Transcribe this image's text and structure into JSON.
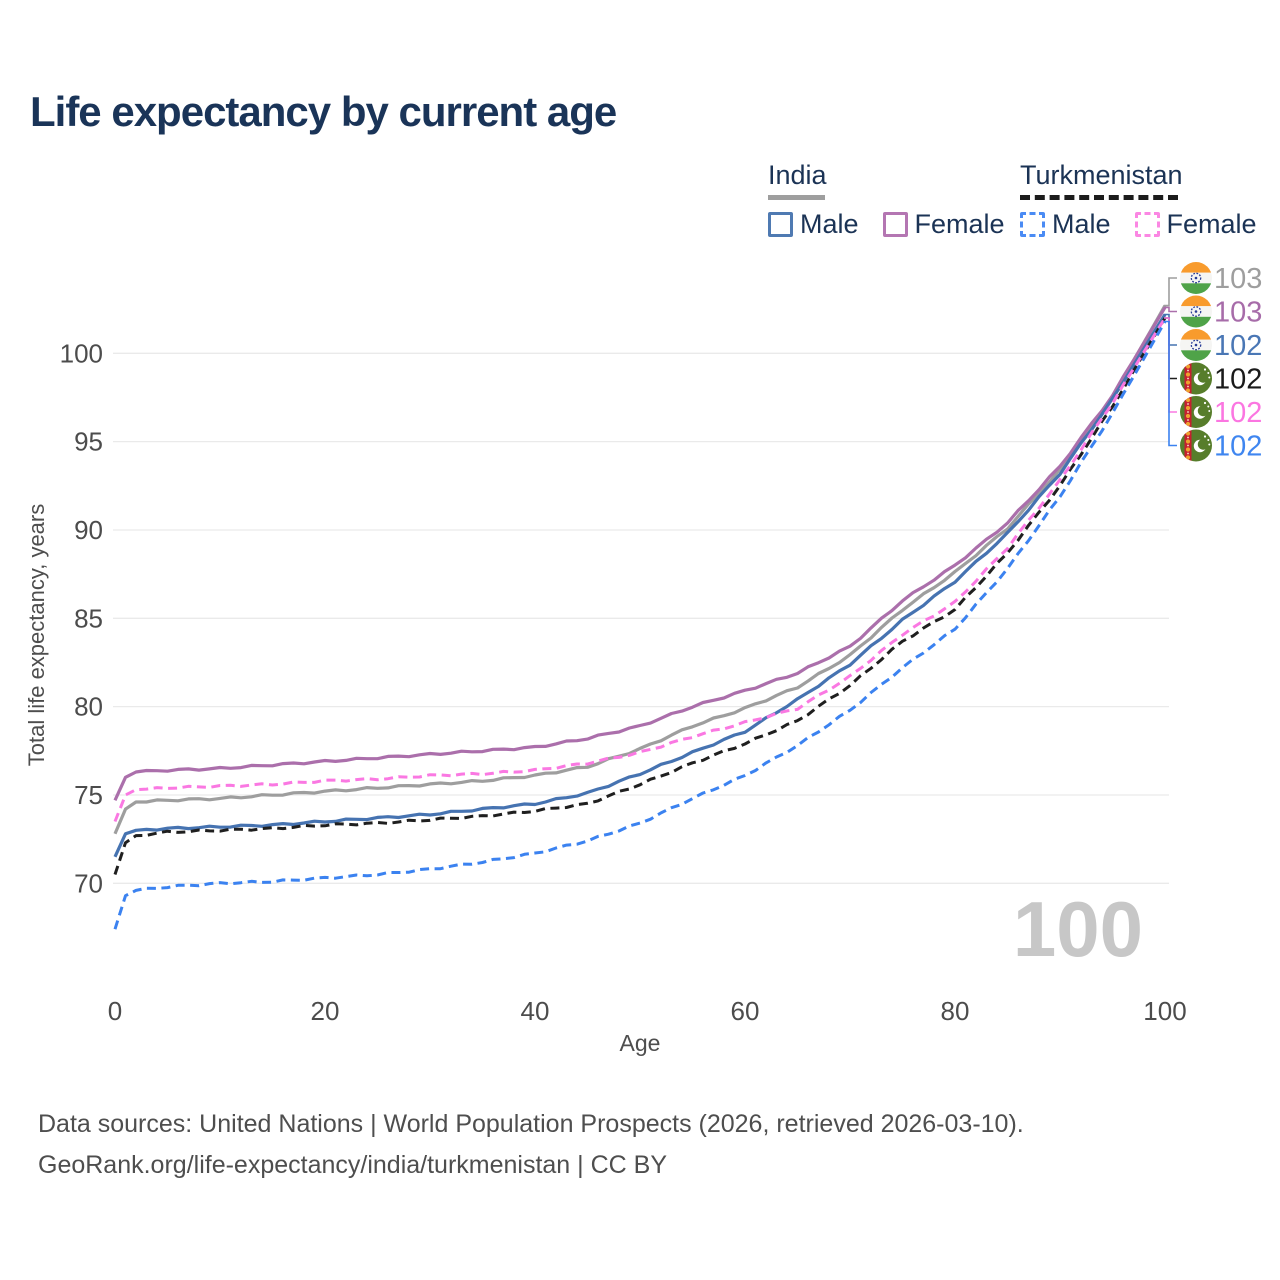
{
  "title": "Life expectancy by current age",
  "legend": {
    "groups": [
      {
        "label": "India",
        "line_style": "solid",
        "line_color": "#9e9e9e",
        "items": [
          {
            "label": "Male",
            "color": "#4f7ab2",
            "dashed": false
          },
          {
            "label": "Female",
            "color": "#b476b2",
            "dashed": false
          }
        ]
      },
      {
        "label": "Turkmenistan",
        "line_style": "dashed",
        "line_color": "#1c1c1c",
        "items": [
          {
            "label": "Male",
            "color": "#4a8bf4",
            "dashed": true
          },
          {
            "label": "Female",
            "color": "#fb87e3",
            "dashed": true
          }
        ]
      }
    ]
  },
  "chart_data": {
    "type": "line",
    "title": "Life expectancy by current age",
    "xlabel": "Age",
    "ylabel": "Total life expectancy, years",
    "x_ticks": [
      0,
      20,
      40,
      60,
      80,
      100
    ],
    "y_ticks": [
      70,
      75,
      80,
      85,
      90,
      95,
      100
    ],
    "xlim": [
      0,
      100
    ],
    "ylim": [
      66.5,
      103.5
    ],
    "grid": true,
    "legend_position": "top-right",
    "x": [
      0,
      1,
      2,
      5,
      10,
      15,
      20,
      25,
      30,
      35,
      40,
      45,
      50,
      55,
      60,
      65,
      70,
      75,
      80,
      85,
      90,
      95,
      100
    ],
    "series": [
      {
        "id": "india-all",
        "name": "India",
        "country": "India",
        "sex": "All",
        "color": "#9e9e9e",
        "dashed": false,
        "flag": "india",
        "end_label": "103",
        "label_color": "#9e9e9e",
        "values": [
          72.8,
          74.2,
          74.6,
          74.7,
          74.8,
          75.0,
          75.2,
          75.4,
          75.6,
          75.8,
          76.1,
          76.6,
          77.6,
          78.9,
          79.9,
          81.1,
          82.9,
          85.5,
          87.6,
          90.1,
          93.4,
          97.5,
          102.7
        ]
      },
      {
        "id": "india-female",
        "name": "India Female",
        "country": "India",
        "sex": "Female",
        "color": "#ab6fab",
        "dashed": false,
        "flag": "india",
        "end_label": "103",
        "label_color": "#a76ca9",
        "values": [
          74.7,
          76.0,
          76.3,
          76.4,
          76.5,
          76.7,
          76.9,
          77.1,
          77.3,
          77.5,
          77.7,
          78.2,
          78.9,
          80.0,
          80.9,
          81.9,
          83.4,
          86.0,
          88.0,
          90.4,
          93.6,
          97.6,
          102.6
        ]
      },
      {
        "id": "india-male",
        "name": "India Male",
        "country": "India",
        "sex": "Male",
        "color": "#4673b1",
        "dashed": false,
        "flag": "india",
        "end_label": "102",
        "label_color": "#4a77b5",
        "values": [
          71.5,
          72.8,
          73.0,
          73.1,
          73.2,
          73.3,
          73.5,
          73.7,
          73.9,
          74.2,
          74.5,
          75.1,
          76.2,
          77.4,
          78.6,
          80.4,
          82.4,
          84.9,
          87.1,
          89.8,
          93.2,
          97.4,
          102.2
        ]
      },
      {
        "id": "turkmenistan-all",
        "name": "Turkmenistan",
        "country": "Turkmenistan",
        "sex": "All",
        "color": "#1f1f1f",
        "dashed": true,
        "flag": "turkmenistan",
        "end_label": "102",
        "label_color": "#1a1a1a",
        "values": [
          70.5,
          72.3,
          72.7,
          72.9,
          73.0,
          73.1,
          73.3,
          73.4,
          73.6,
          73.8,
          74.1,
          74.5,
          75.6,
          76.8,
          77.9,
          79.2,
          81.2,
          83.7,
          85.5,
          88.7,
          92.5,
          97.0,
          102.0
        ]
      },
      {
        "id": "turkmenistan-female",
        "name": "Turkmenistan Female",
        "country": "Turkmenistan",
        "sex": "Female",
        "color": "#fa78e2",
        "dashed": true,
        "flag": "turkmenistan",
        "end_label": "102",
        "label_color": "#fb76e1",
        "values": [
          73.5,
          75.0,
          75.3,
          75.4,
          75.5,
          75.6,
          75.8,
          75.9,
          76.1,
          76.2,
          76.4,
          76.8,
          77.4,
          78.3,
          79.1,
          79.9,
          81.7,
          84.1,
          85.9,
          89.0,
          92.8,
          97.2,
          102.0
        ]
      },
      {
        "id": "turkmenistan-male",
        "name": "Turkmenistan Male",
        "country": "Turkmenistan",
        "sex": "Male",
        "color": "#3b82f0",
        "dashed": true,
        "flag": "turkmenistan",
        "end_label": "102",
        "label_color": "#3f86f0",
        "values": [
          67.4,
          69.3,
          69.6,
          69.8,
          70.0,
          70.1,
          70.3,
          70.5,
          70.8,
          71.2,
          71.7,
          72.4,
          73.4,
          74.8,
          76.1,
          77.8,
          79.8,
          82.2,
          84.4,
          87.8,
          91.9,
          96.6,
          101.8
        ]
      }
    ]
  },
  "watermark": "100",
  "footer": {
    "line1": "Data sources: United Nations | World Population Prospects (2026, retrieved 2026-03-10).",
    "line2": "GeoRank.org/life-expectancy/india/turkmenistan | CC BY"
  }
}
